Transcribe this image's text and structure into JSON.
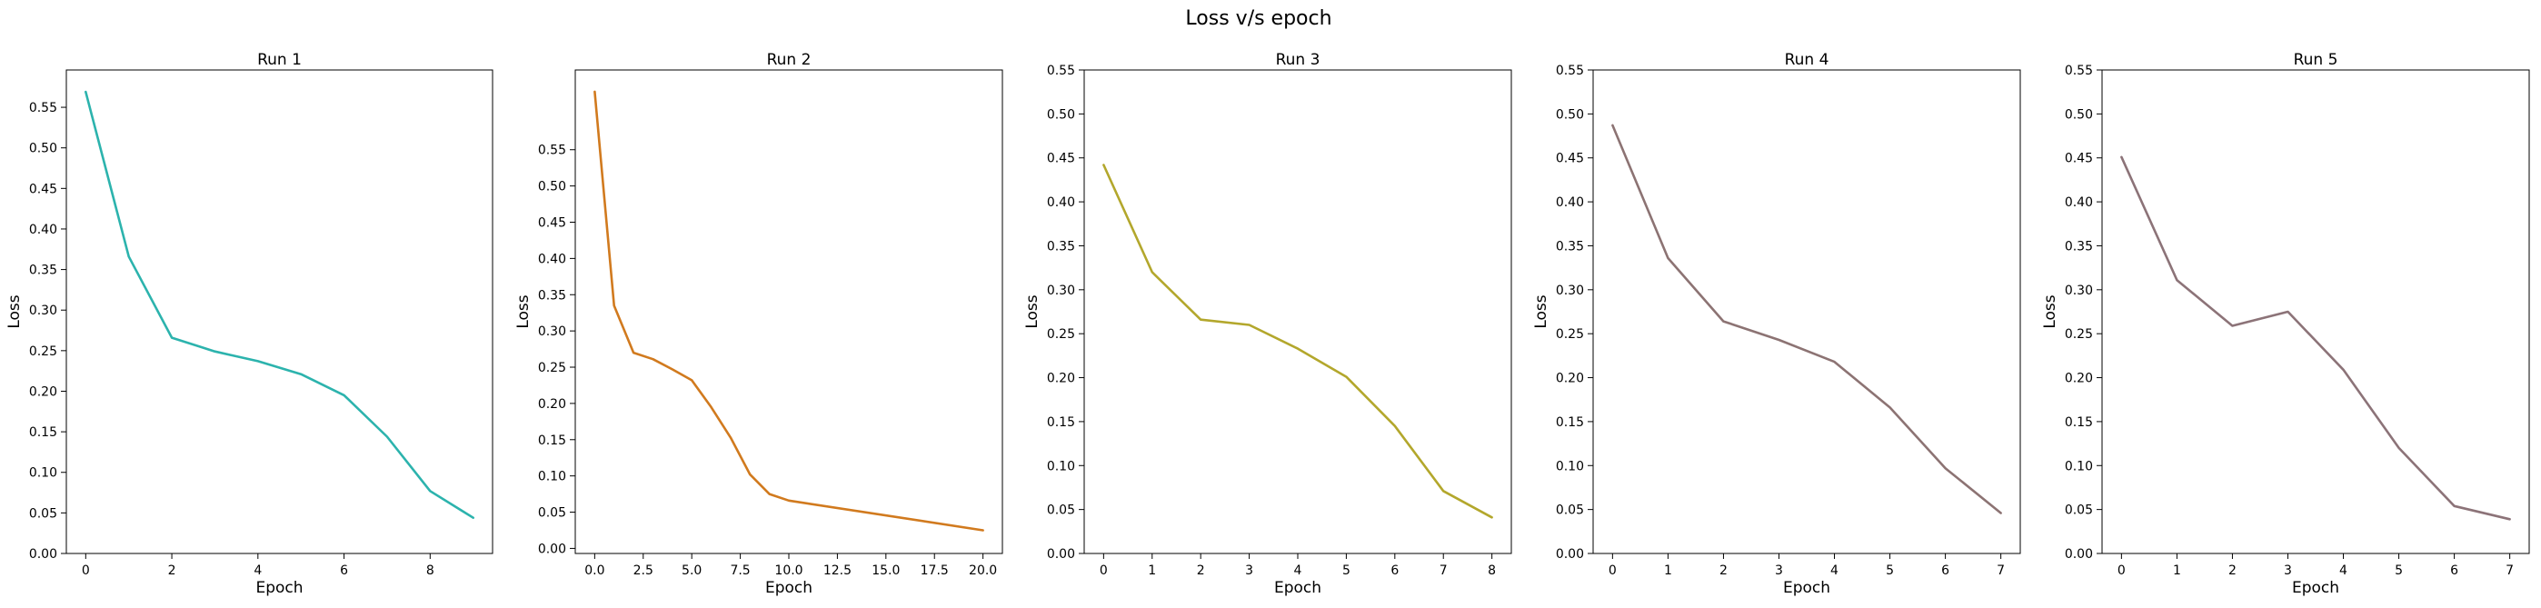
{
  "figure": {
    "title": "Loss v/s epoch"
  },
  "chart_data": [
    {
      "type": "line",
      "title": "Run 1",
      "xlabel": "Epoch",
      "ylabel": "Loss",
      "xlim": [
        -0.45,
        9.45
      ],
      "ylim": [
        0,
        0.596
      ],
      "xticks": [
        0,
        2,
        4,
        6,
        8
      ],
      "xtick_labels": [
        "0",
        "2",
        "4",
        "6",
        "8"
      ],
      "yticks": [
        0,
        0.05,
        0.1,
        0.15,
        0.2,
        0.25,
        0.3,
        0.35,
        0.4,
        0.45,
        0.5,
        0.55
      ],
      "ytick_labels": [
        "0.00",
        "0.05",
        "0.10",
        "0.15",
        "0.20",
        "0.25",
        "0.30",
        "0.35",
        "0.40",
        "0.45",
        "0.50",
        "0.55"
      ],
      "grid": false,
      "color": "#2cb3ad",
      "x": [
        0,
        1,
        2,
        3,
        4,
        5,
        6,
        7,
        8,
        9
      ],
      "y": [
        0.569,
        0.366,
        0.266,
        0.249,
        0.237,
        0.221,
        0.195,
        0.144,
        0.077,
        0.044
      ]
    },
    {
      "type": "line",
      "title": "Run 2",
      "xlabel": "Epoch",
      "ylabel": "Loss",
      "xlim": [
        -1.0,
        21.0
      ],
      "ylim": [
        -0.007,
        0.66
      ],
      "xticks": [
        0,
        2.5,
        5,
        7.5,
        10,
        12.5,
        15,
        17.5,
        20
      ],
      "xtick_labels": [
        "0.0",
        "2.5",
        "5.0",
        "7.5",
        "10.0",
        "12.5",
        "15.0",
        "17.5",
        "20.0"
      ],
      "yticks": [
        0,
        0.05,
        0.1,
        0.15,
        0.2,
        0.25,
        0.3,
        0.35,
        0.4,
        0.45,
        0.5,
        0.55
      ],
      "ytick_labels": [
        "0.00",
        "0.05",
        "0.10",
        "0.15",
        "0.20",
        "0.25",
        "0.30",
        "0.35",
        "0.40",
        "0.45",
        "0.50",
        "0.55"
      ],
      "grid": false,
      "color": "#d17a1e",
      "x": [
        0,
        1,
        2,
        3,
        4,
        5,
        6,
        7,
        8,
        9,
        10,
        20
      ],
      "y": [
        0.63,
        0.335,
        0.27,
        0.261,
        0.247,
        0.232,
        0.195,
        0.153,
        0.102,
        0.075,
        0.066,
        0.025
      ]
    },
    {
      "type": "line",
      "title": "Run 3",
      "xlabel": "Epoch",
      "ylabel": "Loss",
      "xlim": [
        -0.4,
        8.4
      ],
      "ylim": [
        0,
        0.55
      ],
      "xticks": [
        0,
        1,
        2,
        3,
        4,
        5,
        6,
        7,
        8
      ],
      "xtick_labels": [
        "0",
        "1",
        "2",
        "3",
        "4",
        "5",
        "6",
        "7",
        "8"
      ],
      "yticks": [
        0,
        0.05,
        0.1,
        0.15,
        0.2,
        0.25,
        0.3,
        0.35,
        0.4,
        0.45,
        0.5,
        0.55
      ],
      "ytick_labels": [
        "0.00",
        "0.05",
        "0.10",
        "0.15",
        "0.20",
        "0.25",
        "0.30",
        "0.35",
        "0.40",
        "0.45",
        "0.50",
        "0.55"
      ],
      "grid": false,
      "color": "#b3a72c",
      "x": [
        0,
        1,
        2,
        3,
        4,
        5,
        6,
        7,
        8
      ],
      "y": [
        0.442,
        0.32,
        0.266,
        0.26,
        0.233,
        0.201,
        0.145,
        0.071,
        0.041
      ]
    },
    {
      "type": "line",
      "title": "Run 4",
      "xlabel": "Epoch",
      "ylabel": "Loss",
      "xlim": [
        -0.35,
        7.35
      ],
      "ylim": [
        0,
        0.55
      ],
      "xticks": [
        0,
        1,
        2,
        3,
        4,
        5,
        6,
        7
      ],
      "xtick_labels": [
        "0",
        "1",
        "2",
        "3",
        "4",
        "5",
        "6",
        "7"
      ],
      "yticks": [
        0,
        0.05,
        0.1,
        0.15,
        0.2,
        0.25,
        0.3,
        0.35,
        0.4,
        0.45,
        0.5,
        0.55
      ],
      "ytick_labels": [
        "0.00",
        "0.05",
        "0.10",
        "0.15",
        "0.20",
        "0.25",
        "0.30",
        "0.35",
        "0.40",
        "0.45",
        "0.50",
        "0.55"
      ],
      "grid": false,
      "color": "#8c7373",
      "x": [
        0,
        1,
        2,
        3,
        4,
        5,
        6,
        7
      ],
      "y": [
        0.487,
        0.336,
        0.264,
        0.243,
        0.218,
        0.166,
        0.097,
        0.046
      ]
    },
    {
      "type": "line",
      "title": "Run 5",
      "xlabel": "Epoch",
      "ylabel": "Loss",
      "xlim": [
        -0.35,
        7.35
      ],
      "ylim": [
        0,
        0.55
      ],
      "xticks": [
        0,
        1,
        2,
        3,
        4,
        5,
        6,
        7
      ],
      "xtick_labels": [
        "0",
        "1",
        "2",
        "3",
        "4",
        "5",
        "6",
        "7"
      ],
      "yticks": [
        0,
        0.05,
        0.1,
        0.15,
        0.2,
        0.25,
        0.3,
        0.35,
        0.4,
        0.45,
        0.5,
        0.55
      ],
      "ytick_labels": [
        "0.00",
        "0.05",
        "0.10",
        "0.15",
        "0.20",
        "0.25",
        "0.30",
        "0.35",
        "0.40",
        "0.45",
        "0.50",
        "0.55"
      ],
      "grid": false,
      "color": "#8c7378",
      "x": [
        0,
        1,
        2,
        3,
        4,
        5,
        6,
        7
      ],
      "y": [
        0.451,
        0.311,
        0.259,
        0.275,
        0.209,
        0.12,
        0.054,
        0.039
      ]
    }
  ]
}
